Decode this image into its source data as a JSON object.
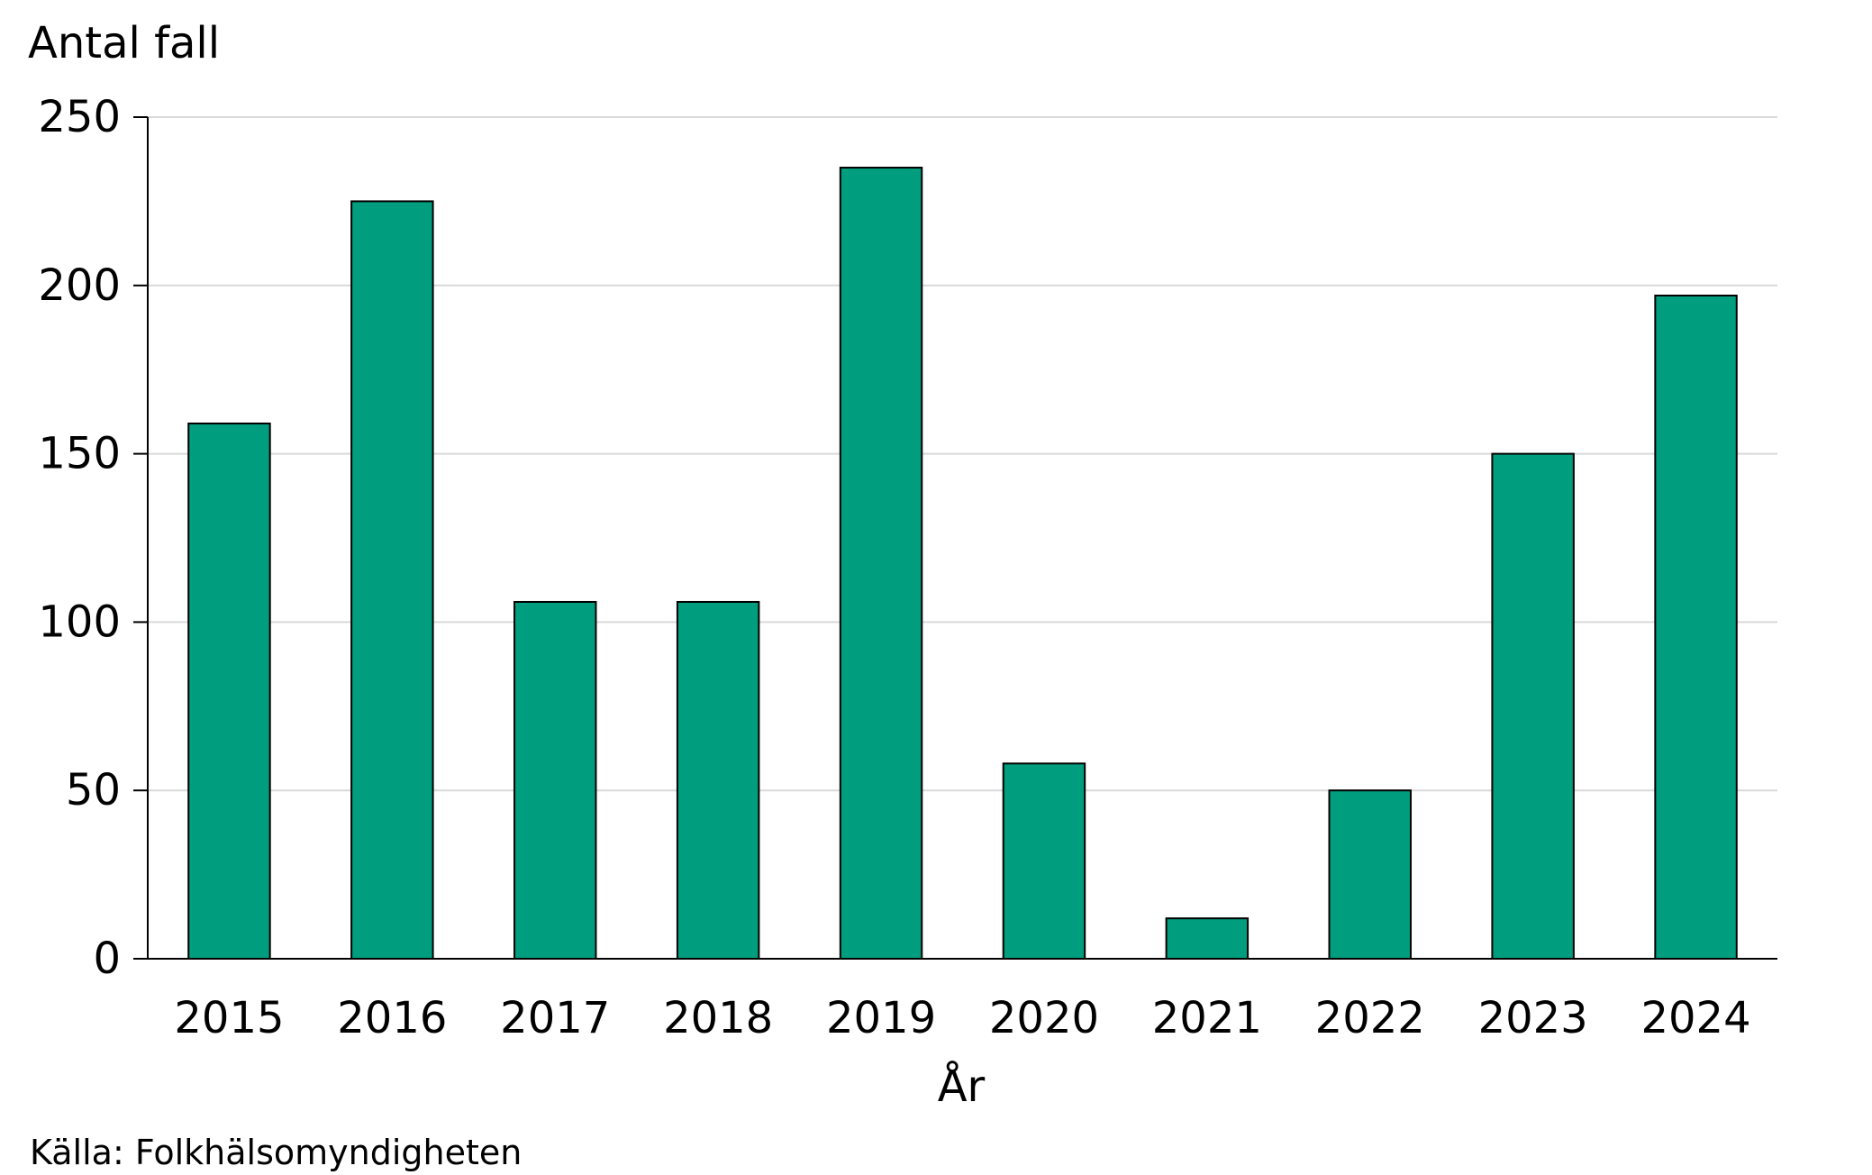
{
  "chart_data": {
    "type": "bar",
    "title": "",
    "ylabel": "Antal fall",
    "xlabel": "År",
    "categories": [
      "2015",
      "2016",
      "2017",
      "2018",
      "2019",
      "2020",
      "2021",
      "2022",
      "2023",
      "2024"
    ],
    "values": [
      159,
      225,
      106,
      106,
      235,
      58,
      12,
      50,
      150,
      197
    ],
    "ylim": [
      0,
      250
    ],
    "yticks": [
      "0",
      "50",
      "100",
      "150",
      "200",
      "250"
    ],
    "grid": true,
    "legend": "none",
    "bar_color": "#009e7e",
    "bar_outline_color": "#000000",
    "grid_color": "#d9d9d9"
  },
  "source_note": "Källa: Folkhälsomyndigheten"
}
